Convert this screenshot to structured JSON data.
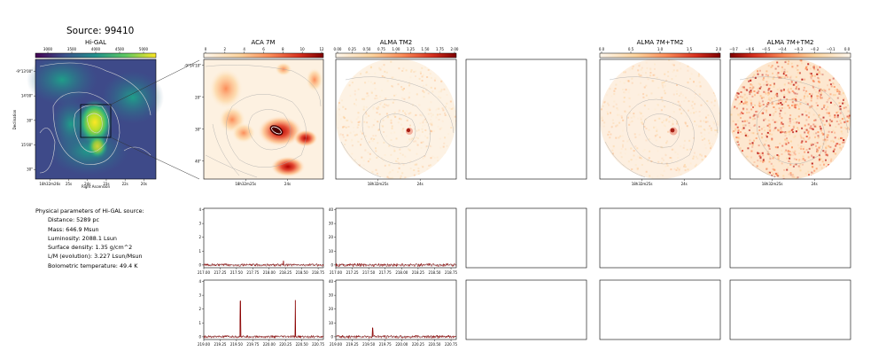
{
  "source_title": "Source: 99410",
  "colors": {
    "heat_light": "#fdf3e6",
    "heat_mid": "#f0974a",
    "heat_dark": "#7f0000",
    "viridis_low": "#440154",
    "viridis_high": "#fde725",
    "spectrum_line": "#8b0000",
    "contour": "#a0a0a0"
  },
  "params": {
    "heading": "Physical parameters of Hi-GAL source:",
    "rows": [
      "Distance: 5289 pc",
      "Mass: 646.9 Msun",
      "Luminosity: 2088.1 Lsun",
      "Surface density: 1.35 g/cm^2",
      "L/M (evolution): 3.227 Lsun/Msun",
      "Bolometric temperature: 49.4 K"
    ]
  },
  "chart_data": [
    {
      "type": "heatmap",
      "title": "Hi-GAL",
      "colormap": "viridis",
      "colorbar_ticks": [
        "3000",
        "3500",
        "4000",
        "4500",
        "5000"
      ],
      "xlabel": "Right Ascension",
      "ylabel": "Declination",
      "x_ticks": [
        "18h32m26s",
        "25s",
        "24s",
        "23s",
        "22s",
        "20s"
      ],
      "y_ticks": [
        "-9°13'00\"",
        "14'00\"",
        "30\"",
        "15'00\"",
        "30\""
      ]
    },
    {
      "type": "heatmap",
      "title": "ACA 7M",
      "colormap": "orange-red",
      "colorbar_ticks": [
        "0",
        "2",
        "4",
        "6",
        "8",
        "10",
        "12"
      ],
      "x_ticks": [
        "18h32m25s",
        "24s"
      ],
      "y_ticks": [
        "-9°14'10\"",
        "20\"",
        "30\"",
        "40\""
      ]
    },
    {
      "type": "heatmap",
      "title": "ALMA TM2",
      "colormap": "orange-red",
      "colorbar_ticks": [
        "0.00",
        "0.25",
        "0.50",
        "0.75",
        "1.00",
        "1.25",
        "1.50",
        "1.75",
        "2.00"
      ],
      "x_ticks": [
        "18h32m25s",
        "24s"
      ]
    },
    {
      "type": "heatmap",
      "title": "ALMA 7M+TM2",
      "colormap": "orange-red",
      "colorbar_ticks": [
        "0.0",
        "0.5",
        "1.0",
        "1.5",
        "2.0"
      ],
      "x_ticks": [
        "18h32m25s",
        "24s"
      ]
    },
    {
      "type": "heatmap",
      "title": "ALMA 7M+TM2",
      "colormap": "orange-red",
      "colorbar_ticks": [
        "−0.7",
        "−0.6",
        "−0.5",
        "−0.4",
        "−0.3",
        "−0.2",
        "−0.1",
        "0.0"
      ],
      "x_ticks": [
        "18h32m25s",
        "24s"
      ]
    },
    {
      "type": "line",
      "panel": "ACA 7M spectrum, upper band",
      "x_ticks": [
        "217.00",
        "217.25",
        "217.50",
        "217.75",
        "218.00",
        "218.25",
        "218.50",
        "218.75"
      ],
      "xlim": [
        217.0,
        218.83
      ],
      "y_ticks": [
        "0",
        "1",
        "2",
        "3",
        "4"
      ],
      "ylim": [
        -0.2,
        4.1
      ],
      "baseline": 0.0,
      "noise": 0.1,
      "peaks": [
        {
          "x": 218.22,
          "y": 0.3
        }
      ]
    },
    {
      "type": "line",
      "panel": "ALMA TM2 spectrum, upper band",
      "x_ticks": [
        "217.00",
        "217.25",
        "217.50",
        "217.75",
        "218.00",
        "218.25",
        "218.50",
        "218.75"
      ],
      "xlim": [
        217.0,
        218.83
      ],
      "y_ticks": [
        "0",
        "10",
        "20",
        "30",
        "40"
      ],
      "ylim": [
        -2,
        41
      ],
      "baseline": 0.0,
      "noise": 1.2,
      "peaks": []
    },
    {
      "type": "line",
      "panel": "ACA 7M spectrum, lower band",
      "x_ticks": [
        "219.00",
        "219.25",
        "219.50",
        "219.75",
        "220.00",
        "220.25",
        "220.50",
        "220.75"
      ],
      "xlim": [
        219.0,
        220.83
      ],
      "y_ticks": [
        "0",
        "1",
        "2",
        "3",
        "4"
      ],
      "ylim": [
        -0.2,
        4.1
      ],
      "baseline": 0.0,
      "noise": 0.1,
      "peaks": [
        {
          "x": 219.56,
          "y": 2.6
        },
        {
          "x": 220.4,
          "y": 2.65
        }
      ]
    },
    {
      "type": "line",
      "panel": "ALMA TM2 spectrum, lower band",
      "x_ticks": [
        "219.00",
        "219.25",
        "219.50",
        "219.75",
        "220.00",
        "220.25",
        "220.50",
        "220.75"
      ],
      "xlim": [
        219.0,
        220.83
      ],
      "y_ticks": [
        "0",
        "10",
        "20",
        "30",
        "40"
      ],
      "ylim": [
        -2,
        41
      ],
      "baseline": 0.0,
      "noise": 1.2,
      "peaks": [
        {
          "x": 219.56,
          "y": 6.5
        }
      ]
    }
  ]
}
